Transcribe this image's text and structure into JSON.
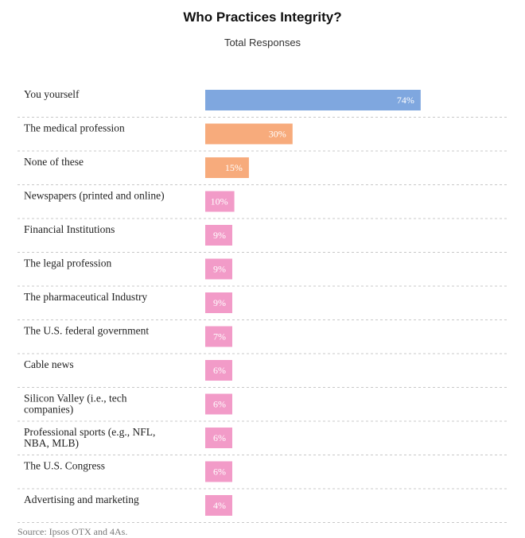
{
  "chart_data": {
    "type": "bar",
    "orientation": "horizontal",
    "title": "Who Practices Integrity?",
    "subtitle": "Total Responses",
    "value_suffix": "%",
    "xlim": [
      0,
      100
    ],
    "grid": false,
    "categories": [
      "You yourself",
      "The medical profession",
      "None of these",
      "Newspapers (printed and online)",
      "Financial Institutions",
      "The legal profession",
      "The pharmaceutical Industry",
      "The U.S. federal government",
      "Cable news",
      "Silicon Valley (i.e., tech companies)",
      "Professional sports (e.g., NFL, NBA, MLB)",
      "The U.S. Congress",
      "Advertising and marketing"
    ],
    "values": [
      74,
      30,
      15,
      10,
      9,
      9,
      9,
      7,
      6,
      6,
      6,
      6,
      4
    ],
    "colors": [
      "#7fa7df",
      "#f7ab7c",
      "#f7ab7c",
      "#f29bc8",
      "#f29bc8",
      "#f29bc8",
      "#f29bc8",
      "#f29bc8",
      "#f29bc8",
      "#f29bc8",
      "#f29bc8",
      "#f29bc8",
      "#f29bc8"
    ],
    "source": "Source: Ipsos OTX and 4As."
  }
}
